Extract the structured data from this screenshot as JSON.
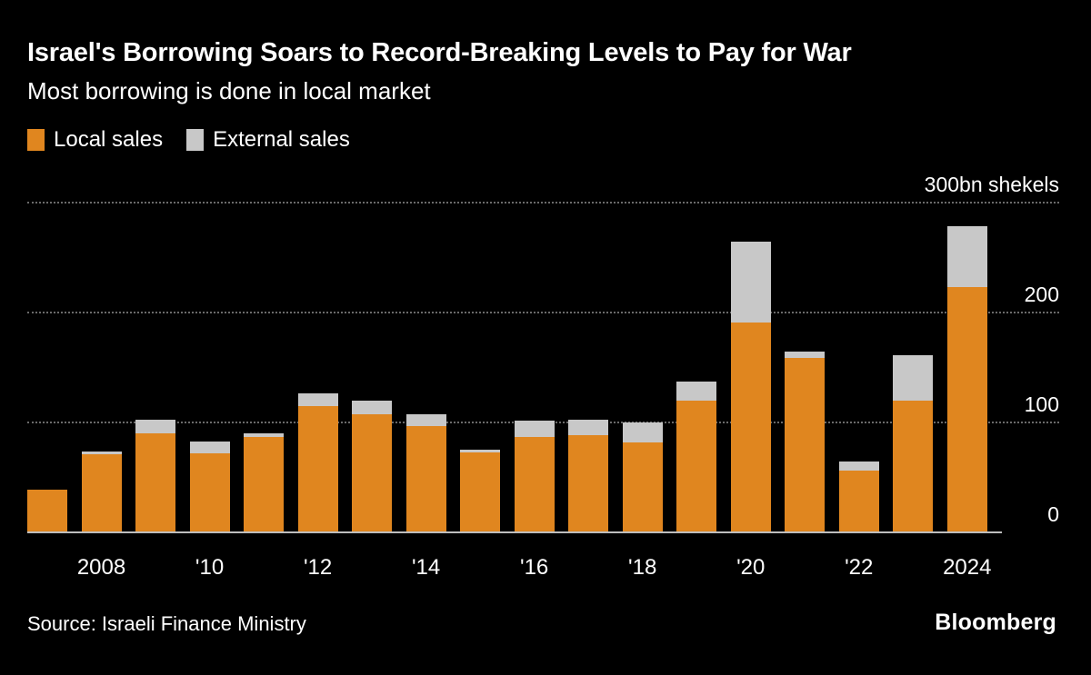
{
  "header": {
    "title": "Israel's Borrowing Soars to Record-Breaking Levels to Pay for War",
    "subtitle": "Most borrowing is done in local market"
  },
  "legend": [
    {
      "label": "Local sales",
      "color": "#e0861f"
    },
    {
      "label": "External sales",
      "color": "#c8c8c8"
    }
  ],
  "axis": {
    "top_label": "300bn shekels",
    "y_ticks": [
      "200",
      "100",
      "0"
    ]
  },
  "chart_data": {
    "type": "bar",
    "stacked": true,
    "title": "Israel's Borrowing Soars to Record-Breaking Levels to Pay for War",
    "subtitle": "Most borrowing is done in local market",
    "unit": "bn shekels",
    "ylim": [
      0,
      300
    ],
    "grid": "dotted-horizontal",
    "legend_position": "top-left",
    "categories": [
      "2007",
      "2008",
      "2009",
      "2010",
      "2011",
      "2012",
      "2013",
      "2014",
      "2015",
      "2016",
      "2017",
      "2018",
      "2019",
      "2020",
      "2021",
      "2022",
      "2023",
      "2024"
    ],
    "tick_labels": [
      "",
      "2008",
      "",
      "'10",
      "",
      "'12",
      "",
      "'14",
      "",
      "'16",
      "",
      "'18",
      "",
      "'20",
      "",
      "'22",
      "",
      "2024"
    ],
    "series": [
      {
        "name": "Local sales",
        "color": "#e0861f",
        "values": [
          38,
          70,
          89,
          71,
          86,
          114,
          107,
          96,
          72,
          86,
          88,
          81,
          119,
          190,
          158,
          55,
          119,
          222
        ]
      },
      {
        "name": "External sales",
        "color": "#c8c8c8",
        "values": [
          0,
          3,
          13,
          11,
          3,
          12,
          12,
          11,
          2,
          15,
          14,
          18,
          17,
          74,
          6,
          9,
          41,
          56
        ]
      }
    ]
  },
  "footer": {
    "source": "Source: Israeli Finance Ministry",
    "brand": "Bloomberg"
  }
}
